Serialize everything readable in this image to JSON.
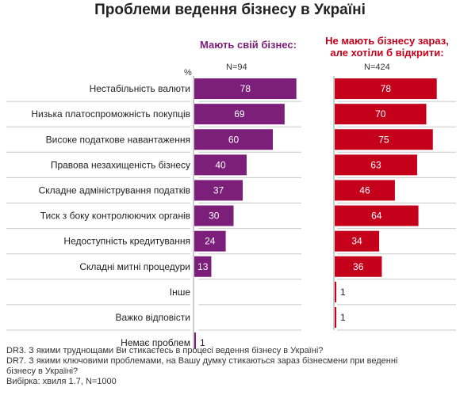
{
  "title": "Проблеми ведення бізнесу в Україні",
  "groups": {
    "left": {
      "label": "Мають свій бізнес:",
      "n": "N=94"
    },
    "right": {
      "label_line1": "Не мають бізнесу зараз,",
      "label_line2": "але хотіли б відкрити:",
      "n": "N=424"
    }
  },
  "unit": "%",
  "colors": {
    "left": "#7b1f7a",
    "right": "#c4001a",
    "divider": "#c8c8c8"
  },
  "notes": [
    "DR3. З якими труднощами Ви стикаєтесь в процесі ведення бізнесу в Україні?",
    "DR7. З якими ключовими проблемами, на Вашу думку стикаються зараз бізнесмени при веденні",
    "бізнесу в Україні?",
    "Вибірка: хвиля 1.7, N=1000"
  ],
  "chart_data": {
    "type": "bar",
    "title": "Проблеми ведення бізнесу в Україні",
    "categories": [
      "Нестабільність валюти",
      "Низька платоспроможність покупців",
      "Високе податкове навантаження",
      "Правова незахищеність бізнесу",
      "Складне адміністрування податків",
      "Тиск з боку контролюючих органів",
      "Недоступність кредитування",
      "Складні митні процедури",
      "Інше",
      "Важко відповісти",
      "Немає проблем"
    ],
    "series": [
      {
        "name": "Мають свій бізнес:",
        "n": "N=94",
        "values": [
          78,
          69,
          60,
          40,
          37,
          30,
          24,
          13,
          null,
          null,
          1
        ]
      },
      {
        "name": "Не мають бізнесу зараз, але хотіли б відкрити:",
        "n": "N=424",
        "values": [
          78,
          70,
          75,
          63,
          46,
          64,
          34,
          36,
          1,
          1,
          null
        ]
      }
    ],
    "unit": "%",
    "xlim": [
      0,
      100
    ],
    "grid": false,
    "orientation": "horizontal"
  }
}
